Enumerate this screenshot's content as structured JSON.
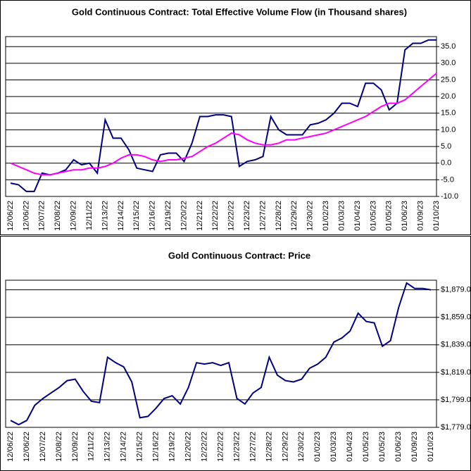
{
  "chart_data": [
    {
      "type": "line",
      "title": "Gold Continuous Contract: Total Effective Volume Flow (in Thousand shares)",
      "categories": [
        "12/06/22",
        null,
        "12/06/22",
        null,
        "12/07/22",
        null,
        "12/08/22",
        null,
        "12/09/22",
        null,
        "12/11/22",
        null,
        "12/13/22",
        null,
        "12/14/22",
        null,
        "12/15/22",
        null,
        "12/16/22",
        null,
        "12/19/22",
        null,
        "12/20/22",
        null,
        "12/21/22",
        null,
        "12/22/22",
        null,
        "12/22/22",
        null,
        "12/23/22",
        null,
        "12/27/22",
        null,
        "12/28/22",
        null,
        "12/29/22",
        null,
        "12/30/22",
        null,
        "01/02/23",
        null,
        "01/03/23",
        null,
        "01/04/23",
        null,
        "01/05/23",
        null,
        "01/05/23",
        null,
        "01/06/23",
        null,
        "01/09/23",
        null,
        "01/10/23"
      ],
      "series": [
        {
          "color": "#000080",
          "values": [
            -6,
            -6.5,
            -8.5,
            -8.5,
            -3,
            -3.5,
            -3,
            -2,
            1,
            -0.5,
            0,
            -3,
            13,
            7.5,
            7.5,
            4,
            -1.5,
            -2,
            -2.5,
            2.5,
            3,
            3,
            0.5,
            6,
            14,
            14,
            14.5,
            14.5,
            14,
            -1,
            0.5,
            1,
            2,
            14,
            10,
            8.5,
            8.5,
            8.5,
            11.5,
            12,
            13,
            15,
            18,
            18,
            17,
            24,
            24,
            22,
            16,
            18,
            34,
            36,
            36,
            37,
            37
          ]
        },
        {
          "color": "#ff00ff",
          "values": [
            0,
            -1,
            -2,
            -3,
            -3.5,
            -3.5,
            -3,
            -2.5,
            -2,
            -2,
            -1.5,
            -1.5,
            -1,
            0,
            1.5,
            2.5,
            2.5,
            2,
            1,
            0.5,
            1,
            1,
            1.5,
            2,
            3.5,
            5,
            6,
            7.5,
            9,
            8.5,
            7,
            6,
            5.5,
            5.5,
            6,
            7,
            7,
            7.5,
            8,
            8.5,
            9,
            10,
            11,
            12,
            13,
            14,
            15.5,
            17,
            18,
            18,
            19,
            21,
            23,
            25,
            27
          ]
        }
      ],
      "ylim": [
        -10,
        38
      ],
      "yticks": [
        {
          "value": -10,
          "label": "-10.0"
        },
        {
          "value": -5,
          "label": "-5.0"
        },
        {
          "value": 0,
          "label": "0.0"
        },
        {
          "value": 5,
          "label": "5.0"
        },
        {
          "value": 10,
          "label": "10.0"
        },
        {
          "value": 15,
          "label": "15.0"
        },
        {
          "value": 20,
          "label": "20.0"
        },
        {
          "value": 25,
          "label": "25.0"
        },
        {
          "value": 30,
          "label": "30.0"
        },
        {
          "value": 35,
          "label": "35.0"
        }
      ],
      "grid": true
    },
    {
      "type": "line",
      "title": "Gold Continuous Contract: Price",
      "categories": [
        "12/06/22",
        null,
        "12/06/22",
        null,
        "12/07/22",
        null,
        "12/08/22",
        null,
        "12/09/22",
        null,
        "12/11/22",
        null,
        "12/13/22",
        null,
        "12/14/22",
        null,
        "12/15/22",
        null,
        "12/16/22",
        null,
        "12/19/22",
        null,
        "12/20/22",
        null,
        "12/22/22",
        null,
        "12/22/22",
        null,
        "12/23/22",
        null,
        "12/27/22",
        null,
        "12/28/22",
        null,
        "12/29/22",
        null,
        "12/30/22",
        null,
        "01/02/23",
        null,
        "01/03/23",
        null,
        "01/04/23",
        null,
        "01/05/23",
        null,
        "01/05/23",
        null,
        "01/06/23",
        null,
        "01/09/23",
        null,
        "01/10/23"
      ],
      "series": [
        {
          "color": "#000080",
          "values": [
            1784,
            1781,
            1784,
            1795,
            1800,
            1804,
            1808,
            1813,
            1814,
            1805,
            1798,
            1797,
            1830,
            1826,
            1823,
            1812,
            1786,
            1787,
            1793,
            1800,
            1802,
            1796,
            1808,
            1826,
            1825,
            1826,
            1824,
            1826,
            1800,
            1796,
            1804,
            1808,
            1830,
            1817,
            1813,
            1812,
            1814,
            1822,
            1825,
            1830,
            1841,
            1844,
            1849,
            1862,
            1856,
            1855,
            1838,
            1842,
            1866,
            1884,
            1880,
            1880,
            1879
          ]
        }
      ],
      "ylim": [
        1779,
        1886
      ],
      "yticks": [
        {
          "value": 1779,
          "label": "$1,779.0"
        },
        {
          "value": 1799,
          "label": "$1,799.0"
        },
        {
          "value": 1819,
          "label": "$1,819.0"
        },
        {
          "value": 1839,
          "label": "$1,839.0"
        },
        {
          "value": 1859,
          "label": "$1,859.0"
        },
        {
          "value": 1879,
          "label": "$1,879.0"
        }
      ],
      "grid": true
    }
  ]
}
